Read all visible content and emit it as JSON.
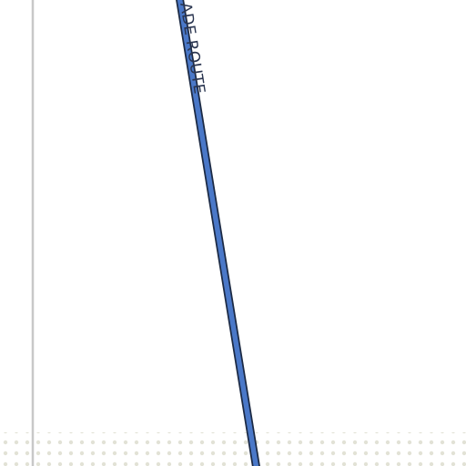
{
  "map": {
    "road_label": "ADE ROUTE",
    "colors": {
      "background": "#ffffff",
      "road_fill": "#4a78c8",
      "road_casing": "#1c2a44",
      "label_text": "#2a3550",
      "boundary_line": "#c8c8c8",
      "dot_pattern": "#e2e2d6"
    },
    "features": {
      "road": "highway",
      "boundary": "boundary-line",
      "dotted_area": "stippled-land-area"
    }
  }
}
